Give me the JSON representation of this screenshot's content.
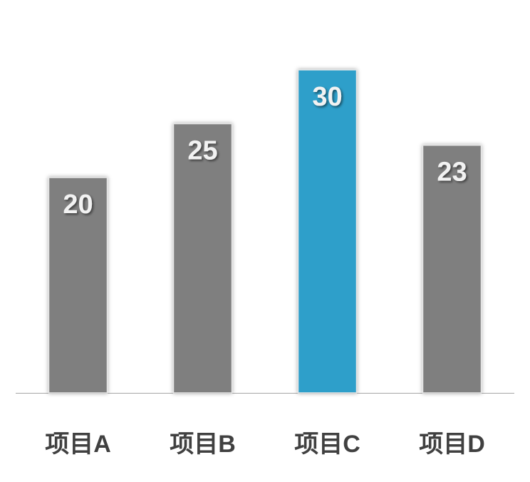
{
  "chart_data": {
    "type": "bar",
    "categories": [
      "项目A",
      "项目B",
      "项目C",
      "项目D"
    ],
    "values": [
      20,
      25,
      30,
      23
    ],
    "colors": [
      "#7f7f7f",
      "#7f7f7f",
      "#2e9fca",
      "#7f7f7f"
    ]
  }
}
